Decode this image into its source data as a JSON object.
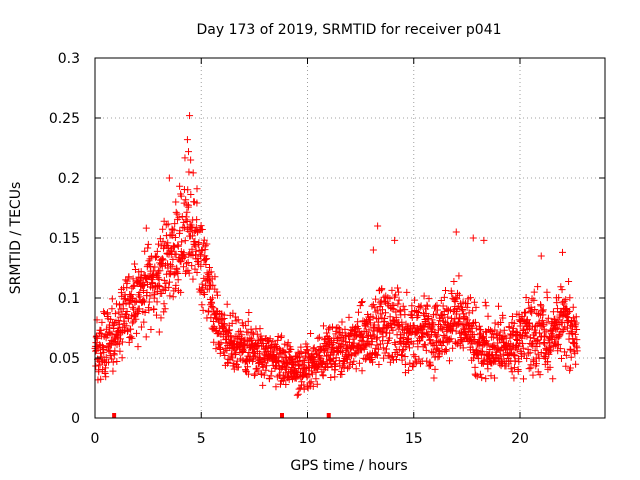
{
  "chart_data": {
    "type": "scatter",
    "title": "Day 173 of 2019, SRMTID for receiver p041",
    "xlabel": "GPS time / hours",
    "ylabel": "SRMTID / TECUs",
    "xlim": [
      0,
      24
    ],
    "ylim": [
      0,
      0.3
    ],
    "x_ticks": [
      0,
      5,
      10,
      15,
      20
    ],
    "x_tick_labels": [
      "0",
      "5",
      "10",
      "15",
      "20"
    ],
    "y_ticks": [
      0,
      0.05,
      0.1,
      0.15,
      0.2,
      0.25,
      0.3
    ],
    "y_tick_labels": [
      "0",
      "0.05",
      "0.1",
      "0.15",
      "0.2",
      "0.25",
      "0.3"
    ],
    "grid": true,
    "marker": "+",
    "color": "#ff0000",
    "series_data_range_hours": [
      0,
      22.7
    ],
    "profile": [
      [
        0.0,
        0.058,
        0.016
      ],
      [
        0.5,
        0.06,
        0.02
      ],
      [
        1.0,
        0.072,
        0.02
      ],
      [
        1.5,
        0.09,
        0.022
      ],
      [
        2.0,
        0.098,
        0.022
      ],
      [
        2.5,
        0.108,
        0.024
      ],
      [
        3.0,
        0.115,
        0.025
      ],
      [
        3.5,
        0.135,
        0.028
      ],
      [
        4.0,
        0.15,
        0.032
      ],
      [
        4.5,
        0.155,
        0.034
      ],
      [
        5.0,
        0.135,
        0.03
      ],
      [
        5.5,
        0.095,
        0.024
      ],
      [
        6.0,
        0.07,
        0.018
      ],
      [
        6.5,
        0.062,
        0.016
      ],
      [
        7.0,
        0.058,
        0.015
      ],
      [
        7.5,
        0.056,
        0.015
      ],
      [
        8.0,
        0.055,
        0.015
      ],
      [
        8.5,
        0.05,
        0.014
      ],
      [
        9.0,
        0.045,
        0.014
      ],
      [
        9.5,
        0.04,
        0.013
      ],
      [
        10.0,
        0.045,
        0.014
      ],
      [
        10.5,
        0.052,
        0.014
      ],
      [
        11.0,
        0.055,
        0.015
      ],
      [
        11.5,
        0.058,
        0.016
      ],
      [
        12.0,
        0.06,
        0.016
      ],
      [
        12.5,
        0.065,
        0.018
      ],
      [
        13.0,
        0.07,
        0.02
      ],
      [
        13.5,
        0.08,
        0.024
      ],
      [
        14.0,
        0.08,
        0.022
      ],
      [
        14.5,
        0.072,
        0.02
      ],
      [
        15.0,
        0.068,
        0.02
      ],
      [
        15.5,
        0.07,
        0.02
      ],
      [
        16.0,
        0.068,
        0.02
      ],
      [
        16.5,
        0.075,
        0.022
      ],
      [
        17.0,
        0.082,
        0.024
      ],
      [
        17.5,
        0.08,
        0.022
      ],
      [
        18.0,
        0.06,
        0.018
      ],
      [
        18.5,
        0.058,
        0.017
      ],
      [
        19.0,
        0.06,
        0.018
      ],
      [
        19.5,
        0.06,
        0.018
      ],
      [
        20.0,
        0.068,
        0.02
      ],
      [
        20.5,
        0.072,
        0.022
      ],
      [
        21.0,
        0.07,
        0.022
      ],
      [
        21.5,
        0.068,
        0.02
      ],
      [
        22.0,
        0.08,
        0.024
      ],
      [
        22.7,
        0.06,
        0.02
      ]
    ],
    "peaks": [
      [
        4.45,
        0.252
      ],
      [
        4.35,
        0.232
      ],
      [
        4.4,
        0.222
      ],
      [
        4.5,
        0.215
      ],
      [
        4.42,
        0.205
      ],
      [
        3.5,
        0.2
      ],
      [
        4.8,
        0.191
      ],
      [
        3.8,
        0.18
      ],
      [
        13.3,
        0.16
      ],
      [
        17.0,
        0.155
      ],
      [
        14.1,
        0.148
      ],
      [
        17.8,
        0.15
      ],
      [
        13.1,
        0.14
      ],
      [
        18.3,
        0.148
      ],
      [
        21.0,
        0.135
      ],
      [
        22.0,
        0.138
      ]
    ],
    "points_per_hour": 95,
    "gap_markers_hours": [
      0.9,
      8.8,
      11.0
    ]
  }
}
